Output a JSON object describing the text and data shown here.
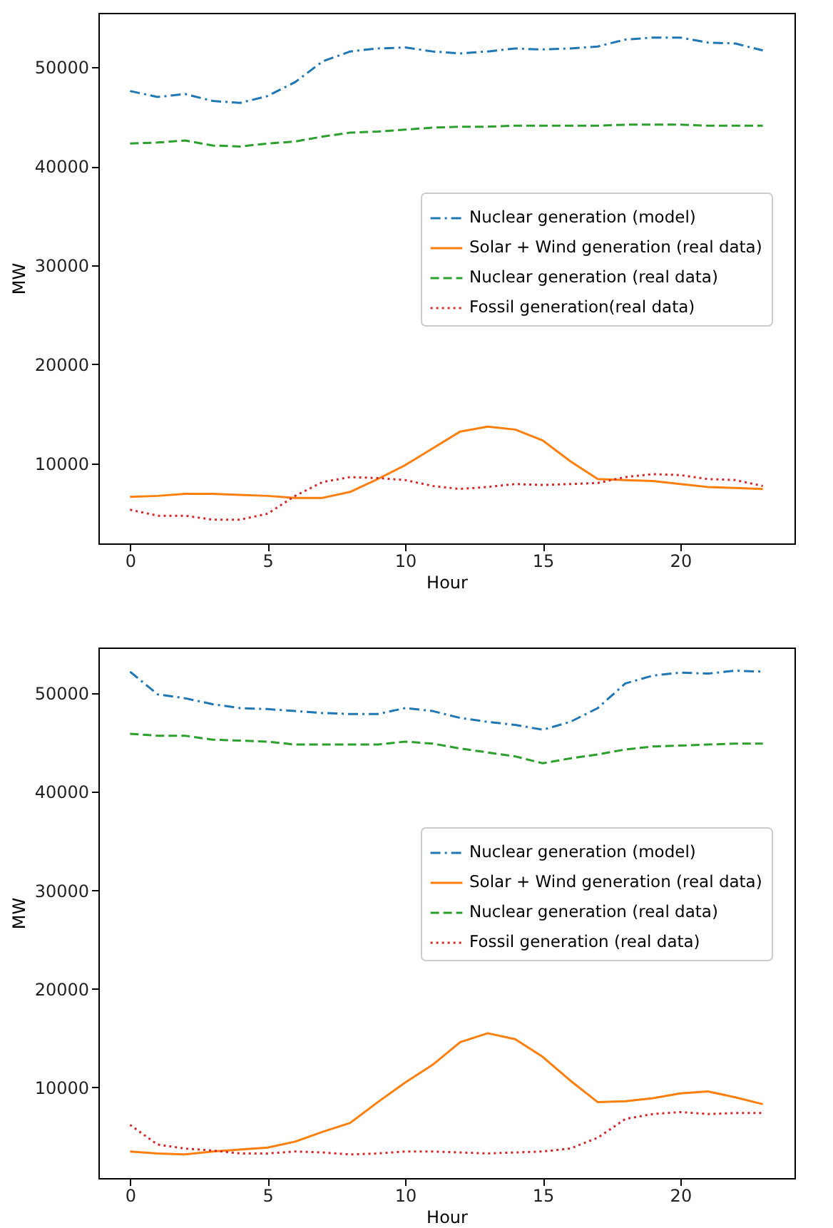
{
  "chart_data": [
    {
      "type": "line",
      "xlabel": "Hour",
      "ylabel": "MW",
      "x": [
        0,
        1,
        2,
        3,
        4,
        5,
        6,
        7,
        8,
        9,
        10,
        11,
        12,
        13,
        14,
        15,
        16,
        17,
        18,
        19,
        20,
        21,
        22,
        23
      ],
      "xlim": [
        -1.15,
        24.15
      ],
      "xticks": [
        0,
        5,
        10,
        15,
        20
      ],
      "ylim": [
        1900,
        55500
      ],
      "yticks": [
        10000,
        20000,
        30000,
        40000,
        50000
      ],
      "grid": false,
      "legend": "right",
      "marker": "none",
      "series": [
        {
          "name": "Nuclear generation (model)",
          "color": "#1f77b4",
          "line_style": "dashdot",
          "values": [
            47600,
            47000,
            47300,
            46600,
            46400,
            47100,
            48500,
            50600,
            51600,
            51900,
            52000,
            51600,
            51400,
            51600,
            51900,
            51800,
            51900,
            52100,
            52800,
            53000,
            53000,
            52500,
            52400,
            51700
          ]
        },
        {
          "name": "Solar + Wind generation (real data)",
          "color": "#ff7f0e",
          "line_style": "solid",
          "values": [
            6600,
            6700,
            6900,
            6900,
            6800,
            6700,
            6500,
            6500,
            7100,
            8400,
            9800,
            11500,
            13200,
            13700,
            13400,
            12300,
            10200,
            8400,
            8300,
            8200,
            7900,
            7600,
            7500,
            7400
          ]
        },
        {
          "name": "Nuclear generation (real data)",
          "color": "#2ca02c",
          "line_style": "dashed",
          "values": [
            42300,
            42400,
            42600,
            42100,
            42000,
            42300,
            42500,
            43000,
            43400,
            43500,
            43700,
            43900,
            44000,
            44000,
            44100,
            44100,
            44100,
            44100,
            44200,
            44200,
            44200,
            44100,
            44100,
            44100
          ]
        },
        {
          "name": "Fossil generation(real data)",
          "color": "#d62728",
          "line_style": "dotted",
          "values": [
            5300,
            4700,
            4700,
            4300,
            4300,
            4900,
            6700,
            8100,
            8600,
            8500,
            8300,
            7700,
            7400,
            7600,
            7900,
            7800,
            7900,
            8000,
            8600,
            8900,
            8800,
            8400,
            8300,
            7700
          ]
        }
      ]
    },
    {
      "type": "line",
      "xlabel": "Hour",
      "ylabel": "MW",
      "x": [
        0,
        1,
        2,
        3,
        4,
        5,
        6,
        7,
        8,
        9,
        10,
        11,
        12,
        13,
        14,
        15,
        16,
        17,
        18,
        19,
        20,
        21,
        22,
        23
      ],
      "xlim": [
        -1.15,
        24.15
      ],
      "xticks": [
        0,
        5,
        10,
        15,
        20
      ],
      "ylim": [
        800,
        54650
      ],
      "yticks": [
        10000,
        20000,
        30000,
        40000,
        50000
      ],
      "grid": false,
      "legend": "right",
      "marker": "none",
      "series": [
        {
          "name": "Nuclear generation (model)",
          "color": "#1f77b4",
          "line_style": "dashdot",
          "values": [
            52200,
            49900,
            49500,
            48900,
            48500,
            48400,
            48200,
            48000,
            47900,
            47900,
            48500,
            48200,
            47500,
            47100,
            46800,
            46300,
            47100,
            48500,
            51000,
            51800,
            52100,
            52000,
            52300,
            52200
          ]
        },
        {
          "name": "Solar + Wind generation (real data)",
          "color": "#ff7f0e",
          "line_style": "solid",
          "values": [
            3500,
            3300,
            3200,
            3500,
            3700,
            3900,
            4500,
            5500,
            6400,
            8500,
            10500,
            12300,
            14600,
            15500,
            14900,
            13100,
            10700,
            8500,
            8600,
            8900,
            9400,
            9600,
            9000,
            8300
          ]
        },
        {
          "name": "Nuclear generation (real data)",
          "color": "#2ca02c",
          "line_style": "dashed",
          "values": [
            45900,
            45700,
            45700,
            45300,
            45200,
            45100,
            44800,
            44800,
            44800,
            44800,
            45100,
            44900,
            44400,
            44000,
            43600,
            42900,
            43400,
            43800,
            44300,
            44600,
            44700,
            44800,
            44900,
            44900
          ]
        },
        {
          "name": "Fossil generation (real data)",
          "color": "#d62728",
          "line_style": "dotted",
          "values": [
            6200,
            4200,
            3800,
            3600,
            3300,
            3300,
            3500,
            3400,
            3200,
            3300,
            3500,
            3500,
            3400,
            3300,
            3400,
            3500,
            3800,
            4900,
            6800,
            7300,
            7500,
            7300,
            7400,
            7400
          ]
        }
      ]
    }
  ]
}
